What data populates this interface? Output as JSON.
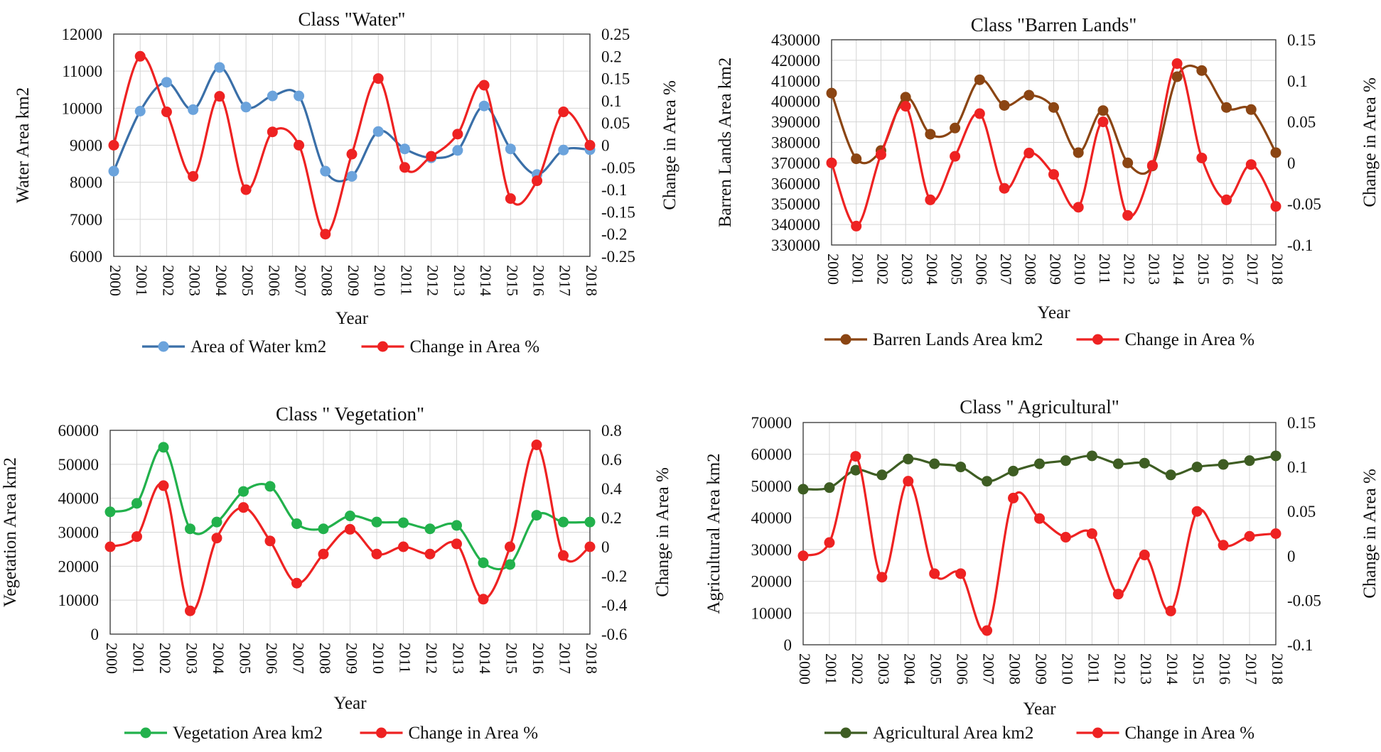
{
  "chart_data": [
    {
      "type": "line",
      "title": "Class \"Water\"",
      "xlabel": "Year",
      "ylabel": "Water Area km2",
      "y2label": "Change in Area %",
      "ylim": [
        6000,
        12000
      ],
      "yticks": [
        6000,
        7000,
        8000,
        9000,
        10000,
        11000,
        12000
      ],
      "y2lim": [
        -0.25,
        0.25
      ],
      "y2ticks": [
        -0.25,
        -0.2,
        -0.15,
        -0.1,
        -0.05,
        0,
        0.05,
        0.1,
        0.15,
        0.2,
        0.25
      ],
      "grid": true,
      "legend_placement": "bottom",
      "categories": [
        "2000",
        "2001",
        "2002",
        "2003",
        "2004",
        "2005",
        "2006",
        "2007",
        "2008",
        "2009",
        "2010",
        "2011",
        "2012",
        "2013",
        "2014",
        "2015",
        "2016",
        "2017",
        "2018"
      ],
      "series": [
        {
          "name": "Area of Water km2",
          "axis": "left",
          "color": "#3a6fa8",
          "marker": "#6ba3dc",
          "values": [
            8300,
            9920,
            10700,
            9960,
            11100,
            10030,
            10330,
            10330,
            8300,
            8160,
            9370,
            8900,
            8660,
            8860,
            10060,
            8900,
            8210,
            8870,
            8880
          ]
        },
        {
          "name": "Change in Area %",
          "axis": "right",
          "color": "#ee2222",
          "marker": "#ee2222",
          "values": [
            0,
            0.2,
            0.075,
            -0.07,
            0.11,
            -0.1,
            0.03,
            0.0,
            -0.2,
            -0.02,
            0.15,
            -0.05,
            -0.025,
            0.025,
            0.135,
            -0.12,
            -0.08,
            0.075,
            0.0
          ]
        }
      ]
    },
    {
      "type": "line",
      "title": "Class \"Barren Lands\"",
      "xlabel": "Year",
      "ylabel": "Barren Lands Area km2",
      "y2label": "Change in Area %",
      "ylim": [
        330000,
        430000
      ],
      "yticks": [
        330000,
        340000,
        350000,
        360000,
        370000,
        380000,
        390000,
        400000,
        410000,
        420000,
        430000
      ],
      "y2lim": [
        -0.1,
        0.15
      ],
      "y2ticks": [
        -0.1,
        -0.05,
        0,
        0.05,
        0.1,
        0.15
      ],
      "grid": true,
      "legend_placement": "bottom",
      "categories": [
        "2000",
        "2001",
        "2002",
        "2003",
        "2004",
        "2005",
        "2006",
        "2007",
        "2008",
        "2009",
        "2010",
        "2011",
        "2012",
        "2013",
        "2014",
        "2015",
        "2016",
        "2017",
        "2018"
      ],
      "series": [
        {
          "name": "Barren Lands Area km2",
          "axis": "left",
          "color": "#8b4513",
          "marker": "#8b4513",
          "values": [
            404000,
            372000,
            376000,
            402000,
            384000,
            387000,
            410500,
            398000,
            403000,
            397000,
            375000,
            395500,
            370000,
            368500,
            412000,
            415000,
            397000,
            396000,
            375000
          ]
        },
        {
          "name": "Change in Area %",
          "axis": "right",
          "color": "#ee2222",
          "marker": "#ee2222",
          "values": [
            0,
            -0.077,
            0.01,
            0.069,
            -0.045,
            0.008,
            0.06,
            -0.031,
            0.012,
            -0.014,
            -0.054,
            0.05,
            -0.064,
            -0.003,
            0.121,
            0.006,
            -0.045,
            -0.002,
            -0.053
          ]
        }
      ]
    },
    {
      "type": "line",
      "title": "Class \" Vegetation\"",
      "xlabel": "Year",
      "ylabel": "Vegetation Area km2",
      "y2label": "Change in Area %",
      "ylim": [
        0,
        60000
      ],
      "yticks": [
        0,
        10000,
        20000,
        30000,
        40000,
        50000,
        60000
      ],
      "y2lim": [
        -0.6,
        0.8
      ],
      "y2ticks": [
        -0.6,
        -0.4,
        -0.2,
        0,
        0.2,
        0.4,
        0.6,
        0.8
      ],
      "grid": true,
      "legend_placement": "bottom",
      "categories": [
        "2000",
        "2001",
        "2002",
        "2003",
        "2004",
        "2005",
        "2006",
        "2007",
        "2008",
        "2009",
        "2010",
        "2011",
        "2012",
        "2013",
        "2014",
        "2015",
        "2016",
        "2017",
        "2018"
      ],
      "series": [
        {
          "name": "Vegetation Area km2",
          "axis": "left",
          "color": "#22b14c",
          "marker": "#22b14c",
          "values": [
            36000,
            38500,
            55000,
            31000,
            33000,
            42000,
            43500,
            32500,
            31000,
            34800,
            33000,
            32800,
            31000,
            32000,
            21000,
            20500,
            35000,
            33000,
            33000
          ]
        },
        {
          "name": "Change in Area %",
          "axis": "right",
          "color": "#ee2222",
          "marker": "#ee2222",
          "values": [
            0,
            0.07,
            0.42,
            -0.44,
            0.06,
            0.27,
            0.04,
            -0.25,
            -0.05,
            0.12,
            -0.05,
            0.0,
            -0.05,
            0.02,
            -0.36,
            0.0,
            0.7,
            -0.06,
            0.0
          ]
        }
      ]
    },
    {
      "type": "line",
      "title": "Class \" Agricultural\"",
      "xlabel": "Year",
      "ylabel": "Agricultural Area km2",
      "y2label": "Change in Area %",
      "ylim": [
        0,
        70000
      ],
      "yticks": [
        0,
        10000,
        20000,
        30000,
        40000,
        50000,
        60000,
        70000
      ],
      "y2lim": [
        -0.1,
        0.15
      ],
      "y2ticks": [
        -0.1,
        -0.05,
        0,
        0.05,
        0.1,
        0.15
      ],
      "grid": true,
      "legend_placement": "bottom",
      "categories": [
        "2000",
        "2001",
        "2002",
        "2003",
        "2004",
        "2005",
        "2006",
        "2007",
        "2008",
        "2009",
        "2010",
        "2011",
        "2012",
        "2013",
        "2014",
        "2015",
        "2016",
        "2017",
        "2018"
      ],
      "series": [
        {
          "name": "Agricultural Area km2",
          "axis": "left",
          "color": "#3e5d23",
          "marker": "#3e5d23",
          "values": [
            49000,
            49500,
            55000,
            53500,
            58500,
            57000,
            56000,
            51500,
            54700,
            57000,
            58000,
            59500,
            57000,
            57200,
            53500,
            56000,
            56800,
            58000,
            59500
          ]
        },
        {
          "name": "Change in Area %",
          "axis": "right",
          "color": "#ee2222",
          "marker": "#ee2222",
          "values": [
            0,
            0.015,
            0.112,
            -0.024,
            0.084,
            -0.02,
            -0.02,
            -0.084,
            0.065,
            0.042,
            0.021,
            0.025,
            -0.043,
            0.001,
            -0.062,
            0.05,
            0.012,
            0.022,
            0.025
          ]
        }
      ]
    }
  ]
}
